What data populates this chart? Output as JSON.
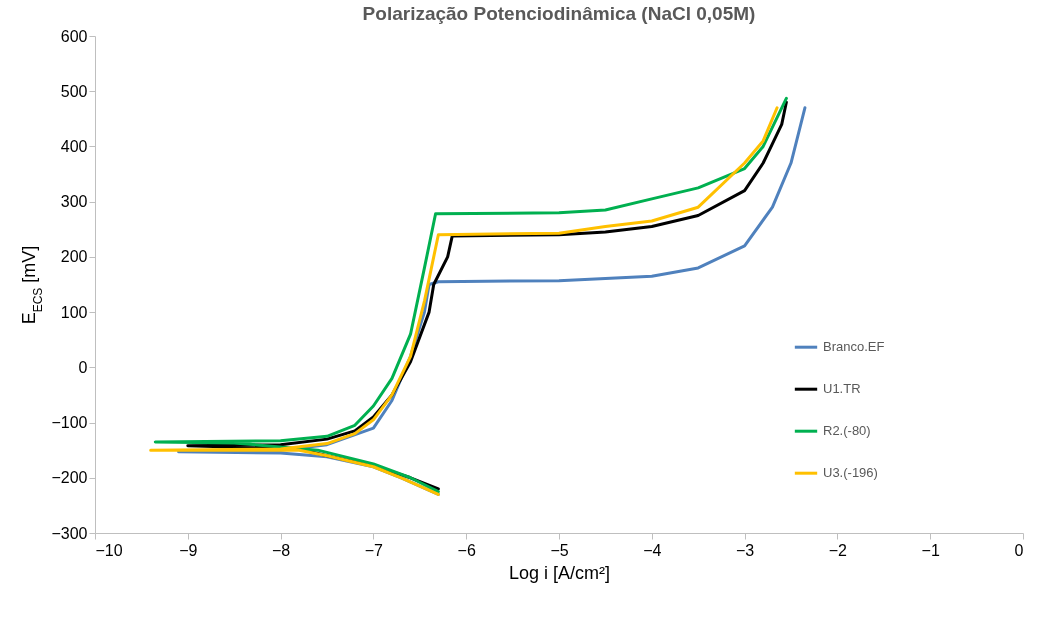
{
  "chart_data": {
    "type": "line",
    "title": "Polarização Potenciodinâmica (NaCl 0,05M)",
    "xlabel": "Log i [A/cm²]",
    "ylabel": "E$_{ECS}$ [mV]",
    "xlim": [
      -10,
      0
    ],
    "xticks": [
      -10,
      -9,
      -8,
      -7,
      -6,
      -5,
      -4,
      -3,
      -2,
      -1,
      0
    ],
    "ylim": [
      -300,
      600
    ],
    "yticks": [
      -300,
      -200,
      -100,
      0,
      100,
      200,
      300,
      400,
      500,
      600
    ],
    "grid": false,
    "legend": "right",
    "series": [
      {
        "name": "Branco.EF",
        "color": "#4f81bd",
        "x": [
          -6.3,
          -6.7,
          -7,
          -7.5,
          -8,
          -9.1,
          -8,
          -7.5,
          -7,
          -6.8,
          -6.6,
          -6.45,
          -6.4,
          -6.3,
          -5,
          -4,
          -3.5,
          -3,
          -2.7,
          -2.5,
          -2.35
        ],
        "values": [
          -230,
          -200,
          -180,
          -162,
          -155,
          -153,
          -150,
          -140,
          -110,
          -60,
          20,
          100,
          150,
          155,
          157,
          165,
          180,
          220,
          290,
          370,
          470
        ]
      },
      {
        "name": "U1.TR",
        "color": "#000000",
        "x": [
          -6.3,
          -6.6,
          -7,
          -7.5,
          -7.8,
          -9,
          -8,
          -7.5,
          -7.2,
          -7,
          -6.8,
          -6.6,
          -6.4,
          -6.35,
          -6.2,
          -6.15,
          -5,
          -4.5,
          -4,
          -3.5,
          -3,
          -2.8,
          -2.6,
          -2.55
        ],
        "values": [
          -220,
          -200,
          -178,
          -160,
          -148,
          -142,
          -140,
          -130,
          -115,
          -90,
          -50,
          10,
          100,
          150,
          200,
          238,
          240,
          245,
          255,
          275,
          320,
          370,
          440,
          480
        ]
      },
      {
        "name": "R2.(-80)",
        "color": "#00b050",
        "x": [
          -6.3,
          -6.6,
          -7,
          -7.6,
          -8.5,
          -9.35,
          -8,
          -7.5,
          -7.2,
          -7,
          -6.8,
          -6.6,
          -6.45,
          -6.33,
          -5,
          -4.5,
          -4,
          -3.5,
          -3,
          -2.8,
          -2.55
        ],
        "values": [
          -225,
          -200,
          -175,
          -150,
          -137,
          -135,
          -133,
          -125,
          -105,
          -70,
          -20,
          60,
          180,
          278,
          280,
          285,
          305,
          325,
          360,
          400,
          487
        ]
      },
      {
        "name": "U3.(-196)",
        "color": "#ffc000",
        "x": [
          -6.3,
          -6.7,
          -7,
          -7.5,
          -7.8,
          -9.4,
          -8,
          -7.5,
          -7.2,
          -7,
          -6.8,
          -6.6,
          -6.45,
          -6.35,
          -6.3,
          -5,
          -4.5,
          -4,
          -3.5,
          -3,
          -2.8,
          -2.65
        ],
        "values": [
          -230,
          -200,
          -180,
          -160,
          -150,
          -150,
          -148,
          -138,
          -120,
          -95,
          -50,
          20,
          120,
          200,
          240,
          243,
          255,
          265,
          290,
          370,
          410,
          470
        ]
      }
    ]
  }
}
